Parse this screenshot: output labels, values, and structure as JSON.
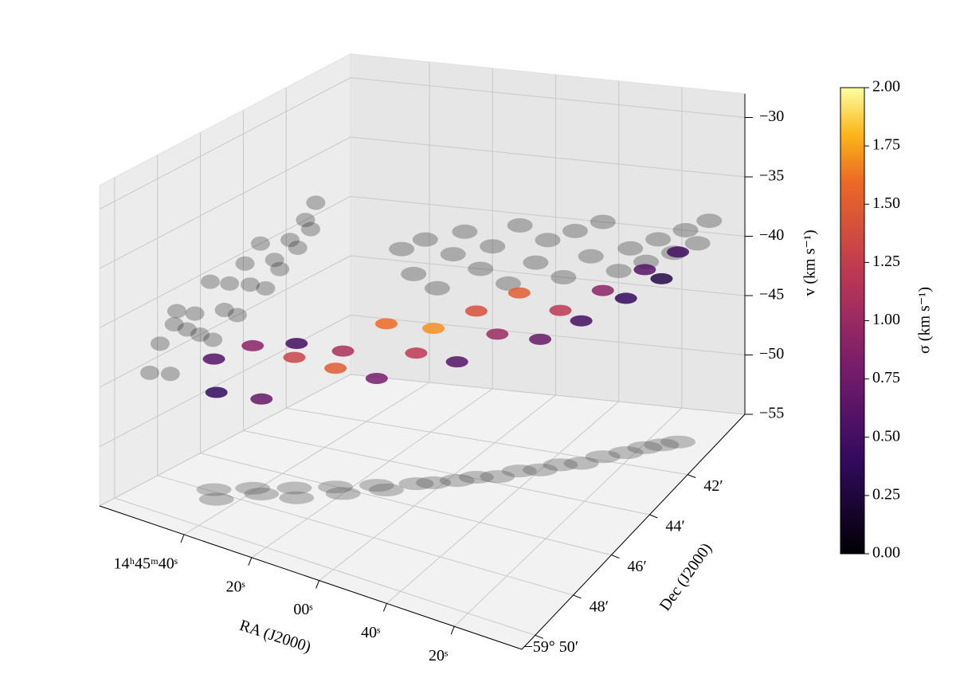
{
  "chart_data": {
    "type": "scatter3d",
    "x_label": "RA (J2000)",
    "y_label": "Dec (J2000)",
    "z_label": "v (km s⁻¹)",
    "colorbar_label": "σ (km s⁻¹)",
    "colormap": "inferno",
    "grid": true,
    "projections": true,
    "xlim": [
      53165,
      53040
    ],
    "xticks": [
      {
        "value": 53140,
        "label": "14ʰ45ᵐ40ˢ"
      },
      {
        "value": 53120,
        "label": "20ˢ"
      },
      {
        "value": 53100,
        "label": "00ˢ"
      },
      {
        "value": 53080,
        "label": "40ˢ"
      },
      {
        "value": 53060,
        "label": "20ˢ"
      }
    ],
    "ylim": [
      -59.845,
      -59.65
    ],
    "yticks": [
      {
        "value": -59.7,
        "label": "42′"
      },
      {
        "value": -59.7333,
        "label": "44′"
      },
      {
        "value": -59.7667,
        "label": "46′"
      },
      {
        "value": -59.8,
        "label": "48′"
      },
      {
        "value": -59.8333,
        "label": "−59° 50′"
      }
    ],
    "zlim": [
      -55,
      -28
    ],
    "zticks": [
      {
        "value": -30,
        "label": "−30"
      },
      {
        "value": -35,
        "label": "−35"
      },
      {
        "value": -40,
        "label": "−40"
      },
      {
        "value": -45,
        "label": "−45"
      },
      {
        "value": -50,
        "label": "−50"
      },
      {
        "value": -55,
        "label": "−55"
      }
    ],
    "clim": [
      0,
      2
    ],
    "cticks": [
      {
        "value": 0,
        "label": "0.00"
      },
      {
        "value": 0.25,
        "label": "0.25"
      },
      {
        "value": 0.5,
        "label": "0.50"
      },
      {
        "value": 0.75,
        "label": "0.75"
      },
      {
        "value": 1,
        "label": "1.00"
      },
      {
        "value": 1.25,
        "label": "1.25"
      },
      {
        "value": 1.5,
        "label": "1.50"
      },
      {
        "value": 1.75,
        "label": "1.75"
      },
      {
        "value": 2,
        "label": "2.00"
      }
    ],
    "x": [
      53148.8,
      53145.0,
      53141.3,
      53137.5,
      53132.5,
      53128.8,
      53123.8,
      53120.0,
      53115.0,
      53111.3,
      53106.3,
      53102.5,
      53097.5,
      53093.8,
      53088.8,
      53085.0,
      53080.0,
      53076.3,
      53071.3,
      53067.5,
      53062.5,
      53058.8,
      53055.0,
      53051.3
    ],
    "y": [
      -59.798,
      -59.806,
      -59.787,
      -59.79,
      -59.777,
      -59.785,
      -59.767,
      -59.771,
      -59.757,
      -59.759,
      -59.748,
      -59.744,
      -59.738,
      -59.732,
      -59.728,
      -59.72,
      -59.716,
      -59.709,
      -59.705,
      -59.697,
      -59.691,
      -59.685,
      -59.681,
      -59.677
    ],
    "z": [
      -44,
      -46,
      -43,
      -47,
      -44,
      -42,
      -45,
      -43,
      -46,
      -41,
      -44,
      -42,
      -45,
      -41,
      -43,
      -40,
      -44,
      -42,
      -43,
      -41,
      -42,
      -40,
      -41,
      -39
    ],
    "values": [
      0.6,
      0.4,
      0.9,
      0.7,
      1.3,
      0.5,
      1.5,
      1.1,
      0.8,
      1.6,
      1.2,
      1.7,
      0.6,
      1.4,
      1.0,
      1.5,
      0.7,
      1.2,
      0.5,
      0.9,
      0.4,
      0.6,
      0.3,
      0.5
    ]
  }
}
